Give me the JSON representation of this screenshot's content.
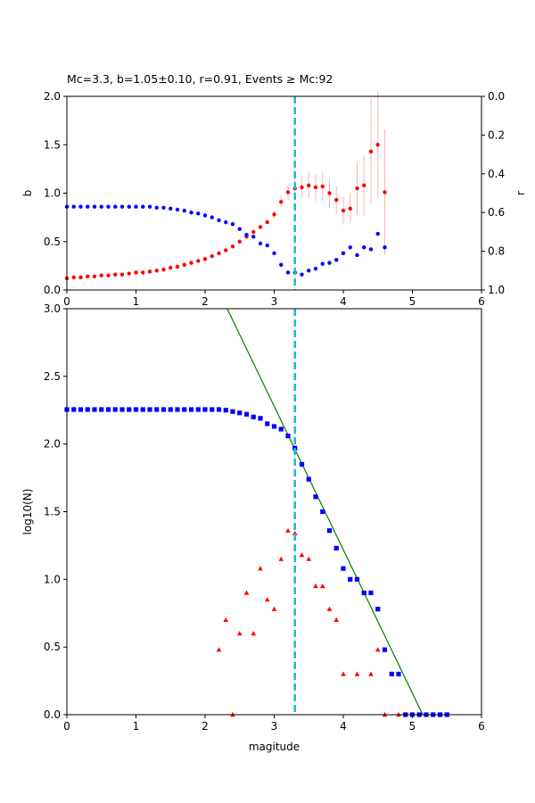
{
  "chart_data": [
    {
      "type": "scatter",
      "title": "Mc=3.3, b=1.05±0.10, r=0.91, Events ≥ Mc:92",
      "xlabel": "",
      "ylabel": "b",
      "y2label": "r",
      "xlim": [
        0,
        6
      ],
      "ylim": [
        0,
        2
      ],
      "y2lim": [
        1.0,
        0.0
      ],
      "xticks": [
        "0",
        "1",
        "2",
        "3",
        "4",
        "5",
        "6"
      ],
      "yticks": [
        "0.0",
        "0.5",
        "1.0",
        "1.5",
        "2.0"
      ],
      "y2ticks": [
        "0.0",
        "0.2",
        "0.4",
        "0.6",
        "0.8",
        "1.0"
      ],
      "vline": {
        "x": 3.3,
        "color": "#17becf"
      },
      "series": [
        {
          "color": "#ff0000",
          "axis": "left",
          "x": [
            0.0,
            0.1,
            0.2,
            0.3,
            0.4,
            0.5,
            0.6,
            0.7,
            0.8,
            0.9,
            1.0,
            1.1,
            1.2,
            1.3,
            1.4,
            1.5,
            1.6,
            1.7,
            1.8,
            1.9,
            2.0,
            2.1,
            2.2,
            2.3,
            2.4,
            2.5,
            2.6,
            2.7,
            2.8,
            2.9,
            3.0,
            3.1,
            3.2,
            3.3,
            3.4,
            3.5,
            3.6,
            3.7,
            3.8,
            3.9,
            4.0,
            4.1,
            4.2,
            4.3,
            4.4,
            4.5,
            4.6
          ],
          "values": [
            0.12,
            0.13,
            0.13,
            0.14,
            0.14,
            0.15,
            0.15,
            0.16,
            0.16,
            0.17,
            0.18,
            0.18,
            0.19,
            0.2,
            0.21,
            0.23,
            0.24,
            0.26,
            0.28,
            0.3,
            0.32,
            0.35,
            0.38,
            0.41,
            0.45,
            0.5,
            0.55,
            0.6,
            0.65,
            0.7,
            0.78,
            0.91,
            1.01,
            1.05,
            1.06,
            1.08,
            1.06,
            1.07,
            1.0,
            0.93,
            0.82,
            0.84,
            1.05,
            1.08,
            1.43,
            1.5,
            1.01
          ],
          "errors": [
            0,
            0,
            0,
            0,
            0,
            0,
            0,
            0,
            0,
            0,
            0,
            0,
            0,
            0,
            0,
            0,
            0,
            0,
            0,
            0,
            0,
            0,
            0,
            0,
            0,
            0,
            0,
            0,
            0,
            0.02,
            0.04,
            0.06,
            0.08,
            0.1,
            0.11,
            0.13,
            0.14,
            0.14,
            0.15,
            0.15,
            0.14,
            0.15,
            0.28,
            0.31,
            0.55,
            0.55,
            0.65
          ]
        },
        {
          "color": "#0000ff",
          "axis": "right",
          "x": [
            0.0,
            0.1,
            0.2,
            0.3,
            0.4,
            0.5,
            0.6,
            0.7,
            0.8,
            0.9,
            1.0,
            1.1,
            1.2,
            1.3,
            1.4,
            1.5,
            1.6,
            1.7,
            1.8,
            1.9,
            2.0,
            2.1,
            2.2,
            2.3,
            2.4,
            2.5,
            2.6,
            2.7,
            2.8,
            2.9,
            3.0,
            3.1,
            3.2,
            3.3,
            3.4,
            3.5,
            3.6,
            3.7,
            3.8,
            3.9,
            4.0,
            4.1,
            4.2,
            4.3,
            4.4,
            4.5,
            4.6
          ],
          "values": [
            0.57,
            0.57,
            0.57,
            0.57,
            0.57,
            0.57,
            0.57,
            0.57,
            0.57,
            0.57,
            0.57,
            0.57,
            0.57,
            0.575,
            0.575,
            0.58,
            0.585,
            0.59,
            0.6,
            0.605,
            0.615,
            0.625,
            0.64,
            0.65,
            0.66,
            0.685,
            0.715,
            0.725,
            0.76,
            0.77,
            0.81,
            0.87,
            0.91,
            0.91,
            0.92,
            0.9,
            0.89,
            0.865,
            0.86,
            0.845,
            0.81,
            0.78,
            0.82,
            0.78,
            0.79,
            0.71,
            0.78
          ]
        }
      ]
    },
    {
      "type": "scatter",
      "title": "",
      "xlabel": "magitude",
      "ylabel": "log10(N)",
      "xlim": [
        0,
        6
      ],
      "ylim": [
        0,
        3
      ],
      "xticks": [
        "0",
        "1",
        "2",
        "3",
        "4",
        "5",
        "6"
      ],
      "yticks": [
        "0.0",
        "0.5",
        "1.0",
        "1.5",
        "2.0",
        "2.5",
        "3.0"
      ],
      "vline": {
        "x": 3.3,
        "color": "#17becf"
      },
      "fit_line": {
        "color": "#008000",
        "x": [
          2.32,
          5.15
        ],
        "y": [
          3.0,
          0.0
        ]
      },
      "series": [
        {
          "color": "#0000ff",
          "marker": "square",
          "x": [
            0.0,
            0.1,
            0.2,
            0.3,
            0.4,
            0.5,
            0.6,
            0.7,
            0.8,
            0.9,
            1.0,
            1.1,
            1.2,
            1.3,
            1.4,
            1.5,
            1.6,
            1.7,
            1.8,
            1.9,
            2.0,
            2.1,
            2.2,
            2.3,
            2.4,
            2.5,
            2.6,
            2.7,
            2.8,
            2.9,
            3.0,
            3.1,
            3.2,
            3.3,
            3.4,
            3.5,
            3.6,
            3.7,
            3.8,
            3.9,
            4.0,
            4.1,
            4.2,
            4.3,
            4.4,
            4.5,
            4.6,
            4.7,
            4.8,
            4.9,
            5.0,
            5.1,
            5.2,
            5.3,
            5.4,
            5.5
          ],
          "values": [
            2.255,
            2.255,
            2.255,
            2.255,
            2.255,
            2.255,
            2.255,
            2.255,
            2.255,
            2.255,
            2.255,
            2.255,
            2.255,
            2.255,
            2.255,
            2.255,
            2.255,
            2.255,
            2.255,
            2.255,
            2.255,
            2.255,
            2.255,
            2.25,
            2.24,
            2.23,
            2.22,
            2.2,
            2.19,
            2.15,
            2.13,
            2.11,
            2.06,
            1.97,
            1.85,
            1.74,
            1.61,
            1.5,
            1.36,
            1.23,
            1.08,
            1.0,
            1.0,
            0.9,
            0.9,
            0.78,
            0.48,
            0.3,
            0.3,
            0.0,
            0.0,
            0.0,
            0.0,
            0.0,
            0.0,
            0.0
          ]
        },
        {
          "color": "#ff0000",
          "marker": "triangle",
          "x": [
            2.2,
            2.3,
            2.4,
            2.5,
            2.6,
            2.7,
            2.8,
            2.9,
            3.0,
            3.1,
            3.2,
            3.3,
            3.4,
            3.5,
            3.6,
            3.7,
            3.8,
            3.9,
            4.0,
            4.2,
            4.4,
            4.5,
            4.6,
            4.8
          ],
          "values": [
            0.48,
            0.7,
            0.0,
            0.6,
            0.9,
            0.6,
            1.08,
            0.85,
            0.78,
            1.15,
            1.36,
            1.34,
            1.18,
            1.15,
            0.95,
            0.95,
            0.78,
            0.7,
            0.3,
            0.3,
            0.3,
            0.48,
            0.0,
            0.0
          ]
        }
      ]
    }
  ]
}
